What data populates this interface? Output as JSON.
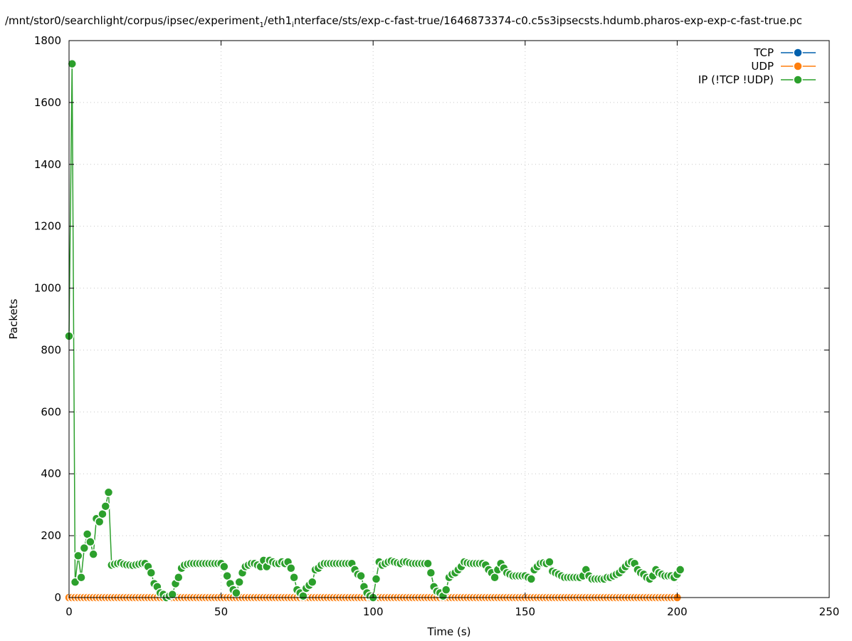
{
  "chart_data": {
    "type": "line",
    "title_parts": [
      "/mnt/stor0/searchlight/corpus/ipsec/experiment",
      "1",
      "/eth1",
      "i",
      "nterface/sts/exp-c-fast-true/1646873374-c0.c5s3ipsecsts.hdumb.pharos-exp-exp-c-fast-true.pc"
    ],
    "xlabel": "Time (s)",
    "ylabel": "Packets",
    "xlim": [
      0,
      250
    ],
    "ylim": [
      0,
      1800
    ],
    "xticks": [
      "0",
      "50",
      "100",
      "150",
      "200",
      "250"
    ],
    "yticks": [
      "0",
      "200",
      "400",
      "600",
      "800",
      "1000",
      "1200",
      "1400",
      "1600",
      "1800"
    ],
    "grid": true,
    "legend_position": "top-right",
    "x_start": 0,
    "x_step": 1,
    "series": [
      {
        "name": "TCP",
        "color": "#0060ad",
        "values": []
      },
      {
        "name": "UDP",
        "color": "#ff7f0e",
        "values": "zeros-0-200"
      },
      {
        "name": "IP (!TCP  !UDP)",
        "color": "#2ca02c",
        "values": [
          845,
          1725,
          50,
          135,
          65,
          160,
          205,
          180,
          140,
          255,
          245,
          270,
          295,
          340,
          105,
          108,
          110,
          112,
          108,
          106,
          105,
          104,
          106,
          108,
          110,
          110,
          100,
          80,
          45,
          35,
          15,
          10,
          0,
          5,
          10,
          45,
          65,
          95,
          105,
          108,
          110,
          110,
          110,
          110,
          110,
          110,
          110,
          110,
          110,
          110,
          110,
          100,
          70,
          45,
          25,
          15,
          50,
          80,
          100,
          105,
          110,
          110,
          105,
          100,
          120,
          100,
          120,
          115,
          110,
          110,
          115,
          110,
          115,
          95,
          65,
          25,
          15,
          5,
          30,
          40,
          50,
          90,
          95,
          105,
          110,
          110,
          110,
          110,
          110,
          110,
          110,
          110,
          110,
          110,
          90,
          75,
          70,
          35,
          15,
          5,
          0,
          60,
          115,
          105,
          110,
          115,
          118,
          115,
          112,
          110,
          115,
          115,
          112,
          110,
          110,
          110,
          110,
          110,
          110,
          80,
          35,
          20,
          15,
          5,
          25,
          65,
          75,
          80,
          90,
          100,
          115,
          112,
          110,
          110,
          110,
          110,
          110,
          105,
          90,
          80,
          65,
          90,
          110,
          95,
          80,
          75,
          70,
          70,
          70,
          70,
          70,
          65,
          60,
          90,
          100,
          110,
          112,
          110,
          115,
          85,
          80,
          75,
          70,
          65,
          65,
          65,
          65,
          65,
          65,
          70,
          90,
          70,
          60,
          60,
          60,
          60,
          60,
          65,
          65,
          70,
          75,
          80,
          90,
          100,
          110,
          115,
          110,
          90,
          80,
          75,
          65,
          60,
          70,
          90,
          80,
          75,
          70,
          70,
          70,
          65,
          75,
          90
        ]
      }
    ]
  }
}
